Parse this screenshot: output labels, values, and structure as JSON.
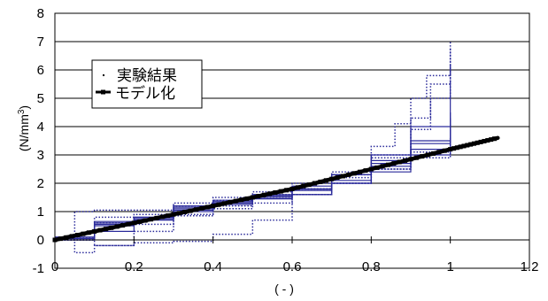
{
  "chart_data": {
    "type": "line",
    "title": "",
    "xlabel": "( - )",
    "ylabel": "(N/mm",
    "ylabel_sup": "3",
    "ylabel_close": ")",
    "xlim": [
      0,
      1.2
    ],
    "ylim": [
      -1,
      8
    ],
    "x_ticks": [
      "0",
      "0.2",
      "0.4",
      "0.6",
      "0.8",
      "1",
      "1.2"
    ],
    "y_ticks": [
      "-1",
      "0",
      "1",
      "2",
      "3",
      "4",
      "5",
      "6",
      "7",
      "8"
    ],
    "grid": {
      "horizontal": true,
      "vertical": false
    },
    "legend": {
      "placement": "upper-left",
      "entries": [
        "実験結果",
        "モデル化"
      ]
    },
    "colors": {
      "experimental": "#2a2a9a",
      "model": "#000000"
    },
    "series": [
      {
        "name": "モデル化",
        "style": "model",
        "x": [
          0,
          0.2,
          0.4,
          0.6,
          0.8,
          1.0,
          1.12
        ],
        "y": [
          0,
          0.6,
          1.2,
          1.8,
          2.5,
          3.2,
          3.6
        ]
      },
      {
        "style": "dotted",
        "x": [
          0,
          0.05,
          0.1,
          0.2,
          0.3,
          0.4,
          0.5,
          0.6,
          0.7,
          0.8,
          0.86,
          0.9,
          0.94,
          1.0
        ],
        "y": [
          0,
          1.0,
          1.05,
          1.05,
          1.2,
          1.4,
          1.6,
          1.8,
          2.2,
          3.3,
          4.1,
          5.0,
          5.8,
          7.0
        ]
      },
      {
        "style": "dotted",
        "x": [
          0,
          0.05,
          0.1,
          0.2,
          0.3,
          0.4,
          0.5,
          0.6,
          0.7,
          0.8,
          0.9,
          0.95,
          1.0
        ],
        "y": [
          0,
          -0.45,
          -0.2,
          -0.1,
          -0.05,
          0.2,
          0.7,
          1.6,
          2.3,
          2.9,
          3.9,
          5.0,
          6.8
        ]
      },
      {
        "style": "dotted",
        "x": [
          0,
          0.1,
          0.2,
          0.3,
          0.4,
          0.5,
          0.6,
          0.7,
          0.8,
          0.9,
          0.95,
          1.0
        ],
        "y": [
          0.05,
          0.8,
          0.9,
          1.3,
          1.5,
          1.7,
          2.0,
          2.4,
          3.0,
          4.3,
          5.5,
          6.2
        ]
      },
      {
        "style": "solid",
        "x": [
          0,
          0.1,
          0.2,
          0.3,
          0.4,
          0.5,
          0.6,
          0.7,
          0.8,
          0.9,
          1.0
        ],
        "y": [
          0.05,
          0.65,
          0.7,
          1.1,
          1.4,
          1.6,
          1.9,
          2.3,
          3.0,
          4.0,
          5.6
        ]
      },
      {
        "style": "solid",
        "x": [
          0,
          0.1,
          0.2,
          0.3,
          0.4,
          0.5,
          0.6,
          0.7,
          0.8,
          0.9,
          1.0
        ],
        "y": [
          0.0,
          0.5,
          0.75,
          1.05,
          1.3,
          1.5,
          1.75,
          2.3,
          2.8,
          3.4,
          4.5
        ]
      },
      {
        "style": "solid",
        "x": [
          0,
          0.1,
          0.2,
          0.3,
          0.4,
          0.5,
          0.6,
          0.7,
          0.8,
          0.9,
          1.0
        ],
        "y": [
          0.1,
          0.6,
          0.8,
          1.15,
          1.35,
          1.55,
          1.8,
          2.0,
          2.6,
          3.5,
          4.1
        ]
      },
      {
        "style": "solid",
        "x": [
          0,
          0.1,
          0.2,
          0.3,
          0.4,
          0.5,
          0.6,
          0.7,
          0.8,
          0.9,
          1.0
        ],
        "y": [
          0.0,
          0.3,
          0.75,
          1.2,
          1.35,
          1.55,
          1.6,
          2.0,
          2.4,
          3.0,
          3.9
        ]
      },
      {
        "style": "dotted",
        "x": [
          0,
          0.1,
          0.2,
          0.3,
          0.4,
          0.5,
          0.6,
          0.7,
          0.8,
          0.9,
          1.0
        ],
        "y": [
          0.0,
          0.6,
          0.55,
          0.9,
          1.2,
          1.5,
          1.8,
          2.0,
          2.5,
          3.1,
          3.6
        ]
      },
      {
        "style": "dotted",
        "x": [
          0,
          0.1,
          0.2,
          0.3,
          0.4,
          0.5,
          0.6,
          0.7,
          0.8,
          0.9,
          1.0
        ],
        "y": [
          0.0,
          -0.2,
          0.3,
          0.85,
          1.1,
          1.3,
          1.6,
          2.0,
          2.5,
          2.9,
          3.2
        ]
      },
      {
        "style": "solid",
        "x": [
          0,
          0.1,
          0.2,
          0.3,
          0.4,
          0.5,
          0.6,
          0.7,
          0.8,
          0.9,
          1.0
        ],
        "y": [
          0.1,
          0.55,
          0.8,
          1.0,
          1.25,
          1.45,
          1.75,
          2.1,
          2.7,
          3.2,
          4.3
        ]
      }
    ]
  }
}
